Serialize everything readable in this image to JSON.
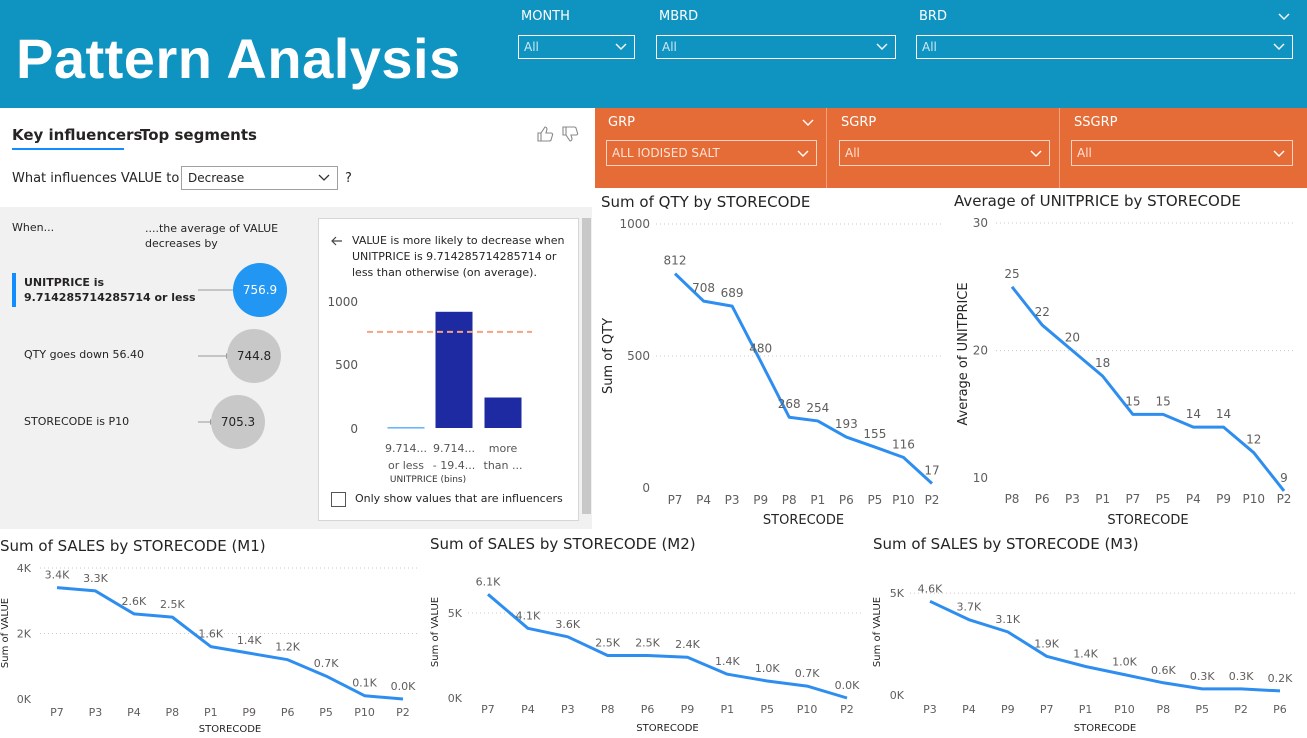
{
  "header": {
    "title": "Pattern Analysis",
    "month_label": "MONTH",
    "month_value": "All",
    "mbrd_label": "MBRD",
    "mbrd_value": "All",
    "brd_label": "BRD",
    "brd_value": "All"
  },
  "subfilters": {
    "grp_label": "GRP",
    "grp_value": "ALL IODISED SALT",
    "sgrp_label": "SGRP",
    "sgrp_value": "All",
    "ssgrp_label": "SSGRP",
    "ssgrp_value": "All"
  },
  "colors": {
    "header": "#0f94c2",
    "filter": "#e66c37",
    "line": "#2e8ef0",
    "bar": "#1e2aa1",
    "influencer_top": "#2196f3",
    "influencer_other": "#c8c8c8"
  },
  "influencers": {
    "tab_key": "Key influencers",
    "tab_top": "Top segments",
    "question_prefix": "What influences VALUE to",
    "question_value": "Decrease",
    "question_suffix": "?",
    "col_when": "When...",
    "col_avg": "....the average of VALUE decreases by",
    "items": [
      {
        "label": "UNITPRICE is 9.714285714285714 or less",
        "value": "756.9"
      },
      {
        "label": "QTY goes down 56.40",
        "value": "744.8"
      },
      {
        "label": "STORECODE is P10",
        "value": "705.3"
      }
    ],
    "detail": {
      "description": "VALUE is more likely to decrease when UNITPRICE is 9.714285714285714 or less than otherwise (on average).",
      "xlabel": "UNITPRICE (bins)",
      "checkbox_label": "Only show values that are influencers"
    }
  },
  "chart_data": [
    {
      "type": "bar",
      "id": "influencer_bins",
      "categories": [
        "9.714... or less",
        "9.714... - 19.4...",
        "more than ..."
      ],
      "values": [
        5,
        915,
        240
      ],
      "average_line": 756.9,
      "yticks": [
        0,
        500,
        1000
      ],
      "ylim": [
        0,
        1000
      ]
    },
    {
      "type": "line",
      "title": "Sum of QTY by STORECODE",
      "xlabel": "STORECODE",
      "ylabel": "Sum of QTY",
      "categories": [
        "P7",
        "P4",
        "P3",
        "P9",
        "P8",
        "P1",
        "P6",
        "P5",
        "P10",
        "P2"
      ],
      "values": [
        812,
        708,
        689,
        480,
        268,
        254,
        193,
        155,
        116,
        17
      ],
      "labels": [
        "812",
        "708",
        "689",
        "480",
        "268",
        "254",
        "193",
        "155",
        "116",
        "17"
      ],
      "ylim": [
        0,
        1000
      ],
      "yticks": [
        0,
        500,
        1000
      ]
    },
    {
      "type": "line",
      "title": "Average of UNITPRICE by STORECODE",
      "xlabel": "STORECODE",
      "ylabel": "Average of UNITPRICE",
      "categories": [
        "P8",
        "P6",
        "P3",
        "P1",
        "P7",
        "P5",
        "P4",
        "P9",
        "P10",
        "P2"
      ],
      "values": [
        25,
        22,
        20,
        18,
        15,
        15,
        14,
        14,
        12,
        9
      ],
      "labels": [
        "25",
        "22",
        "20",
        "18",
        "15",
        "15",
        "14",
        "14",
        "12",
        "9"
      ],
      "ylim": [
        5,
        30
      ],
      "yticks": [
        10,
        20,
        30
      ]
    },
    {
      "type": "line",
      "title": "Sum of SALES by STORECODE (M1)",
      "xlabel": "STORECODE",
      "ylabel": "Sum of VALUE",
      "categories": [
        "P7",
        "P3",
        "P4",
        "P8",
        "P1",
        "P9",
        "P6",
        "P5",
        "P10",
        "P2"
      ],
      "values": [
        3400,
        3300,
        2600,
        2500,
        1600,
        1400,
        1200,
        700,
        100,
        0
      ],
      "labels": [
        "3.4K",
        "3.3K",
        "2.6K",
        "2.5K",
        "1.6K",
        "1.4K",
        "1.2K",
        "0.7K",
        "0.1K",
        "0.0K"
      ],
      "ylim": [
        0,
        4000
      ],
      "yticks": [
        0,
        2000,
        4000
      ],
      "yticklabels": [
        "0K",
        "2K",
        "4K"
      ]
    },
    {
      "type": "line",
      "title": "Sum of SALES by STORECODE (M2)",
      "xlabel": "STORECODE",
      "ylabel": "Sum of VALUE",
      "categories": [
        "P7",
        "P4",
        "P3",
        "P8",
        "P6",
        "P9",
        "P1",
        "P5",
        "P10",
        "P2"
      ],
      "values": [
        6100,
        4100,
        3600,
        2500,
        2500,
        2400,
        1400,
        1000,
        700,
        0
      ],
      "labels": [
        "6.1K",
        "4.1K",
        "3.6K",
        "2.5K",
        "2.5K",
        "2.4K",
        "1.4K",
        "1.0K",
        "0.7K",
        "0.0K"
      ],
      "ylim": [
        0,
        7000
      ],
      "yticks": [
        0,
        5000
      ],
      "yticklabels": [
        "0K",
        "5K"
      ]
    },
    {
      "type": "line",
      "title": "Sum of SALES by STORECODE (M3)",
      "xlabel": "STORECODE",
      "ylabel": "Sum of VALUE",
      "categories": [
        "P3",
        "P4",
        "P9",
        "P7",
        "P1",
        "P10",
        "P8",
        "P5",
        "P2",
        "P6"
      ],
      "values": [
        4600,
        3700,
        3100,
        1900,
        1400,
        1000,
        600,
        300,
        300,
        200
      ],
      "labels": [
        "4.6K",
        "3.7K",
        "3.1K",
        "1.9K",
        "1.4K",
        "1.0K",
        "0.6K",
        "0.3K",
        "0.3K",
        "0.2K"
      ],
      "ylim": [
        0,
        5500
      ],
      "yticks": [
        0,
        5000
      ],
      "yticklabels": [
        "0K",
        "5K"
      ]
    }
  ]
}
